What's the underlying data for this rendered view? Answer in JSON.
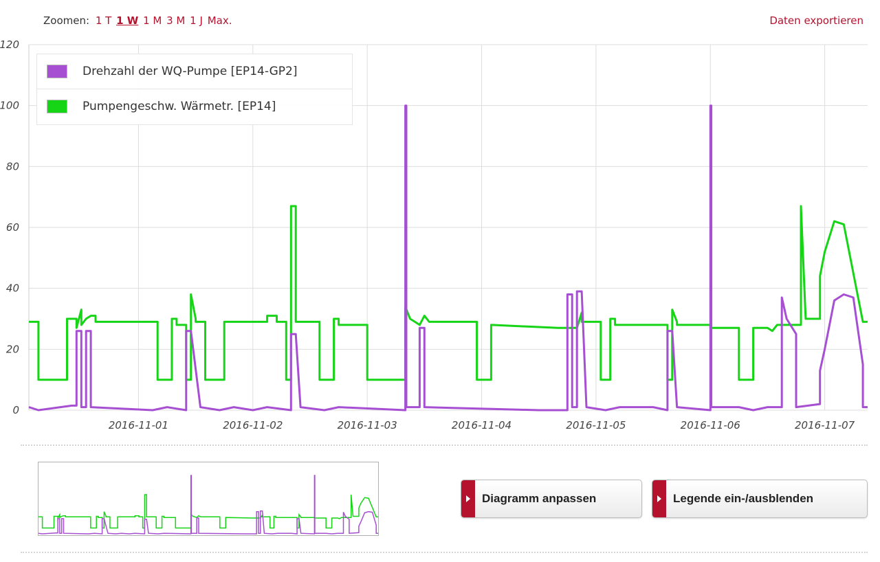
{
  "toolbar": {
    "zoom_label": "Zoomen:",
    "zoom_options": [
      "1 T",
      "1 W",
      "1 M",
      "3 M",
      "1 J",
      "Max."
    ],
    "zoom_active": "1 W",
    "export_label": "Daten exportieren"
  },
  "buttons": {
    "adjust_label": "Diagramm anpassen",
    "legend_label": "Legende ein-/ausblenden"
  },
  "colors": {
    "accent": "#b5122e",
    "series_purple": "#a64fd2",
    "series_green": "#16d416"
  },
  "chart_data": {
    "type": "line",
    "title": "",
    "xlabel": "",
    "ylabel": "",
    "ylim": [
      0,
      120
    ],
    "yticks": [
      "0",
      "20",
      "40",
      "60",
      "80",
      "100",
      "120"
    ],
    "xticks": [
      "2016-11-01",
      "2016-11-02",
      "2016-11-03",
      "2016-11-04",
      "2016-11-05",
      "2016-11-06",
      "2016-11-07"
    ],
    "xlim": [
      "2016-10-31T01:00",
      "2016-11-07T09:00"
    ],
    "grid": true,
    "legend_position": "top-left",
    "series": [
      {
        "name": "Drehzahl der WQ-Pumpe [EP14-GP2]",
        "color": "#a64fd2",
        "points": [
          [
            "2016-10-31T01:00",
            1
          ],
          [
            "2016-10-31T03:00",
            0
          ],
          [
            "2016-10-31T10:00",
            1.5
          ],
          [
            "2016-10-31T11:00",
            1.5
          ],
          [
            "2016-10-31T11:00",
            26
          ],
          [
            "2016-10-31T12:00",
            26
          ],
          [
            "2016-10-31T12:00",
            1
          ],
          [
            "2016-10-31T13:00",
            1
          ],
          [
            "2016-10-31T13:00",
            26
          ],
          [
            "2016-10-31T14:00",
            26
          ],
          [
            "2016-10-31T14:00",
            1
          ],
          [
            "2016-11-01T03:00",
            0
          ],
          [
            "2016-11-01T06:00",
            1
          ],
          [
            "2016-11-01T10:00",
            0
          ],
          [
            "2016-11-01T10:00",
            26
          ],
          [
            "2016-11-01T11:00",
            26
          ],
          [
            "2016-11-01T13:00",
            1
          ],
          [
            "2016-11-01T17:00",
            0
          ],
          [
            "2016-11-01T20:00",
            1
          ],
          [
            "2016-11-02T00:00",
            0
          ],
          [
            "2016-11-02T03:00",
            1
          ],
          [
            "2016-11-02T08:00",
            0
          ],
          [
            "2016-11-02T08:00",
            25
          ],
          [
            "2016-11-02T09:00",
            25
          ],
          [
            "2016-11-02T10:00",
            1
          ],
          [
            "2016-11-02T15:00",
            0
          ],
          [
            "2016-11-02T18:00",
            1
          ],
          [
            "2016-11-03T08:00",
            0
          ],
          [
            "2016-11-03T08:00",
            100
          ],
          [
            "2016-11-03T08:12",
            100
          ],
          [
            "2016-11-03T08:12",
            1
          ],
          [
            "2016-11-03T11:00",
            1
          ],
          [
            "2016-11-03T11:00",
            27
          ],
          [
            "2016-11-03T12:00",
            27
          ],
          [
            "2016-11-03T12:00",
            1
          ],
          [
            "2016-11-04T12:00",
            0
          ],
          [
            "2016-11-04T18:00",
            0
          ],
          [
            "2016-11-04T18:00",
            38
          ],
          [
            "2016-11-04T19:00",
            38
          ],
          [
            "2016-11-04T19:00",
            1
          ],
          [
            "2016-11-04T20:00",
            1
          ],
          [
            "2016-11-04T20:00",
            39
          ],
          [
            "2016-11-04T21:00",
            39
          ],
          [
            "2016-11-04T22:00",
            1
          ],
          [
            "2016-11-05T02:00",
            0
          ],
          [
            "2016-11-05T05:00",
            1
          ],
          [
            "2016-11-05T12:00",
            1
          ],
          [
            "2016-11-05T15:00",
            0
          ],
          [
            "2016-11-05T15:00",
            26
          ],
          [
            "2016-11-05T16:00",
            26
          ],
          [
            "2016-11-05T17:00",
            1
          ],
          [
            "2016-11-06T00:00",
            0
          ],
          [
            "2016-11-06T00:00",
            100
          ],
          [
            "2016-11-06T00:12",
            100
          ],
          [
            "2016-11-06T00:12",
            1
          ],
          [
            "2016-11-06T06:00",
            1
          ],
          [
            "2016-11-06T09:00",
            0
          ],
          [
            "2016-11-06T12:00",
            1
          ],
          [
            "2016-11-06T15:00",
            1
          ],
          [
            "2016-11-06T15:00",
            37
          ],
          [
            "2016-11-06T16:00",
            30
          ],
          [
            "2016-11-06T18:00",
            25
          ],
          [
            "2016-11-06T18:00",
            1
          ],
          [
            "2016-11-06T23:00",
            2
          ],
          [
            "2016-11-06T23:00",
            13
          ],
          [
            "2016-11-07T00:00",
            20
          ],
          [
            "2016-11-07T02:00",
            36
          ],
          [
            "2016-11-07T04:00",
            38
          ],
          [
            "2016-11-07T06:00",
            37
          ],
          [
            "2016-11-07T08:00",
            15
          ],
          [
            "2016-11-07T08:00",
            1
          ],
          [
            "2016-11-07T09:00",
            1
          ]
        ]
      },
      {
        "name": "Pumpengeschw. Wärmetr. [EP14]",
        "color": "#16d416",
        "points": [
          [
            "2016-10-31T01:00",
            29
          ],
          [
            "2016-10-31T03:00",
            29
          ],
          [
            "2016-10-31T03:00",
            10
          ],
          [
            "2016-10-31T09:00",
            10
          ],
          [
            "2016-10-31T09:00",
            30
          ],
          [
            "2016-10-31T11:00",
            30
          ],
          [
            "2016-10-31T11:00",
            27
          ],
          [
            "2016-10-31T12:00",
            33
          ],
          [
            "2016-10-31T12:00",
            28
          ],
          [
            "2016-10-31T13:00",
            30
          ],
          [
            "2016-10-31T14:00",
            31
          ],
          [
            "2016-10-31T15:00",
            31
          ],
          [
            "2016-10-31T15:00",
            29
          ],
          [
            "2016-11-01T04:00",
            29
          ],
          [
            "2016-11-01T04:00",
            10
          ],
          [
            "2016-11-01T07:00",
            10
          ],
          [
            "2016-11-01T07:00",
            30
          ],
          [
            "2016-11-01T08:00",
            30
          ],
          [
            "2016-11-01T08:00",
            28
          ],
          [
            "2016-11-01T10:00",
            28
          ],
          [
            "2016-11-01T10:00",
            10
          ],
          [
            "2016-11-01T11:00",
            10
          ],
          [
            "2016-11-01T11:00",
            38
          ],
          [
            "2016-11-01T12:00",
            30
          ],
          [
            "2016-11-01T12:00",
            29
          ],
          [
            "2016-11-01T14:00",
            29
          ],
          [
            "2016-11-01T14:00",
            10
          ],
          [
            "2016-11-01T18:00",
            10
          ],
          [
            "2016-11-01T18:00",
            29
          ],
          [
            "2016-11-02T03:00",
            29
          ],
          [
            "2016-11-02T03:00",
            31
          ],
          [
            "2016-11-02T05:00",
            31
          ],
          [
            "2016-11-02T05:00",
            29
          ],
          [
            "2016-11-02T07:00",
            29
          ],
          [
            "2016-11-02T07:00",
            10
          ],
          [
            "2016-11-02T08:00",
            10
          ],
          [
            "2016-11-02T08:00",
            67
          ],
          [
            "2016-11-02T09:00",
            67
          ],
          [
            "2016-11-02T09:00",
            29
          ],
          [
            "2016-11-02T14:00",
            29
          ],
          [
            "2016-11-02T14:00",
            10
          ],
          [
            "2016-11-02T17:00",
            10
          ],
          [
            "2016-11-02T17:00",
            30
          ],
          [
            "2016-11-02T18:00",
            30
          ],
          [
            "2016-11-02T18:00",
            28
          ],
          [
            "2016-11-03T00:00",
            28
          ],
          [
            "2016-11-03T00:00",
            10
          ],
          [
            "2016-11-03T08:00",
            10
          ],
          [
            "2016-11-03T08:00",
            34
          ],
          [
            "2016-11-03T09:00",
            30
          ],
          [
            "2016-11-03T10:00",
            29
          ],
          [
            "2016-11-03T11:00",
            28
          ],
          [
            "2016-11-03T12:00",
            31
          ],
          [
            "2016-11-03T13:00",
            29
          ],
          [
            "2016-11-03T23:00",
            29
          ],
          [
            "2016-11-03T23:00",
            10
          ],
          [
            "2016-11-04T02:00",
            10
          ],
          [
            "2016-11-04T02:00",
            28
          ],
          [
            "2016-11-04T16:00",
            27
          ],
          [
            "2016-11-04T20:00",
            27
          ],
          [
            "2016-11-04T21:00",
            32
          ],
          [
            "2016-11-04T21:00",
            29
          ],
          [
            "2016-11-05T01:00",
            29
          ],
          [
            "2016-11-05T01:00",
            10
          ],
          [
            "2016-11-05T03:00",
            10
          ],
          [
            "2016-11-05T03:00",
            30
          ],
          [
            "2016-11-05T04:00",
            30
          ],
          [
            "2016-11-05T04:00",
            28
          ],
          [
            "2016-11-05T15:00",
            28
          ],
          [
            "2016-11-05T15:00",
            10
          ],
          [
            "2016-11-05T16:00",
            10
          ],
          [
            "2016-11-05T16:00",
            33
          ],
          [
            "2016-11-05T17:00",
            29
          ],
          [
            "2016-11-05T17:00",
            28
          ],
          [
            "2016-11-06T00:00",
            28
          ],
          [
            "2016-11-06T00:00",
            27
          ],
          [
            "2016-11-06T06:00",
            27
          ],
          [
            "2016-11-06T06:00",
            10
          ],
          [
            "2016-11-06T09:00",
            10
          ],
          [
            "2016-11-06T09:00",
            27
          ],
          [
            "2016-11-06T12:00",
            27
          ],
          [
            "2016-11-06T13:00",
            26
          ],
          [
            "2016-11-06T14:00",
            28
          ],
          [
            "2016-11-06T19:00",
            28
          ],
          [
            "2016-11-06T19:00",
            67
          ],
          [
            "2016-11-06T20:00",
            30
          ],
          [
            "2016-11-06T23:00",
            30
          ],
          [
            "2016-11-06T23:00",
            44
          ],
          [
            "2016-11-07T00:00",
            52
          ],
          [
            "2016-11-07T02:00",
            62
          ],
          [
            "2016-11-07T04:00",
            61
          ],
          [
            "2016-11-07T06:00",
            45
          ],
          [
            "2016-11-07T08:00",
            29
          ],
          [
            "2016-11-07T09:00",
            29
          ]
        ]
      }
    ]
  }
}
